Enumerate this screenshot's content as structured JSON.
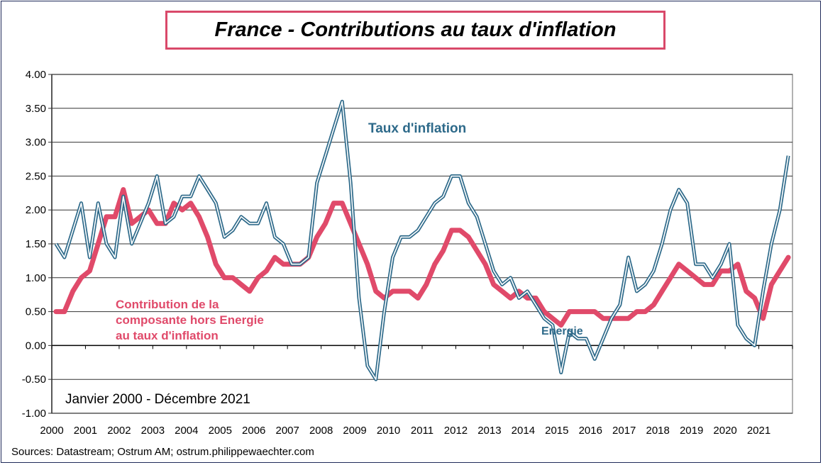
{
  "chart_data": {
    "type": "line",
    "title": "France - Contributions au taux d'inflation",
    "subtitle": "Janvier 2000 - Décembre 2021",
    "source": "Sources: Datastream; Ostrum AM; ostrum.philippewaechter.com",
    "ylim": [
      -1.0,
      4.0
    ],
    "yticks": [
      "4.00",
      "3.50",
      "3.00",
      "2.50",
      "2.00",
      "1.50",
      "1.00",
      "0.50",
      "0.00",
      "-0.50",
      "-1.00"
    ],
    "ytick_values": [
      4.0,
      3.5,
      3.0,
      2.5,
      2.0,
      1.5,
      1.0,
      0.5,
      0.0,
      -0.5,
      -1.0
    ],
    "xticks": [
      "2000",
      "2001",
      "2002",
      "2003",
      "2004",
      "2005",
      "2006",
      "2007",
      "2008",
      "2009",
      "2010",
      "2011",
      "2012",
      "2013",
      "2014",
      "2015",
      "2016",
      "2017",
      "2018",
      "2019",
      "2020",
      "2021"
    ],
    "xlim": [
      2000,
      2022
    ],
    "grid": true,
    "frequency": "quarterly",
    "x_start": 2000,
    "series": [
      {
        "name": "Taux d'inflation",
        "color": "#2e6a8a",
        "style": "double-line",
        "values": [
          1.5,
          1.3,
          1.7,
          2.1,
          1.3,
          2.1,
          1.5,
          1.3,
          2.2,
          1.5,
          1.8,
          2.1,
          2.5,
          1.8,
          1.9,
          2.2,
          2.2,
          2.5,
          2.3,
          2.1,
          1.6,
          1.7,
          1.9,
          1.8,
          1.8,
          2.1,
          1.6,
          1.5,
          1.2,
          1.2,
          1.3,
          2.4,
          2.8,
          3.2,
          3.6,
          2.4,
          0.7,
          -0.3,
          -0.5,
          0.5,
          1.3,
          1.6,
          1.6,
          1.7,
          1.9,
          2.1,
          2.2,
          2.5,
          2.5,
          2.1,
          1.9,
          1.5,
          1.1,
          0.9,
          1.0,
          0.7,
          0.8,
          0.6,
          0.4,
          0.3,
          -0.4,
          0.2,
          0.1,
          0.1,
          -0.2,
          0.1,
          0.4,
          0.6,
          1.3,
          0.8,
          0.9,
          1.1,
          1.5,
          2.0,
          2.3,
          2.1,
          1.2,
          1.2,
          1.0,
          1.2,
          1.5,
          0.3,
          0.1,
          0.0,
          0.8,
          1.5,
          2.0,
          2.8
        ]
      },
      {
        "name": "Contribution de la composante hors Energie au taux d'inflation",
        "color": "#e04a6a",
        "style": "thick",
        "values": [
          0.5,
          0.5,
          0.8,
          1.0,
          1.1,
          1.5,
          1.9,
          1.9,
          2.3,
          1.8,
          1.9,
          2.0,
          1.8,
          1.8,
          2.1,
          2.0,
          2.1,
          1.9,
          1.6,
          1.2,
          1.0,
          1.0,
          0.9,
          0.8,
          1.0,
          1.1,
          1.3,
          1.2,
          1.2,
          1.2,
          1.3,
          1.6,
          1.8,
          2.1,
          2.1,
          1.8,
          1.5,
          1.2,
          0.8,
          0.7,
          0.8,
          0.8,
          0.8,
          0.7,
          0.9,
          1.2,
          1.4,
          1.7,
          1.7,
          1.6,
          1.4,
          1.2,
          0.9,
          0.8,
          0.7,
          0.8,
          0.7,
          0.7,
          0.5,
          0.4,
          0.3,
          0.5,
          0.5,
          0.5,
          0.5,
          0.4,
          0.4,
          0.4,
          0.4,
          0.5,
          0.5,
          0.6,
          0.8,
          1.0,
          1.2,
          1.1,
          1.0,
          0.9,
          0.9,
          1.1,
          1.1,
          1.2,
          0.8,
          0.7,
          0.4,
          0.9,
          1.1,
          1.3
        ]
      }
    ],
    "annotations": {
      "inflation_label": "Taux d'inflation",
      "core_label_lines": [
        "Contribution de la",
        "composante hors Energie",
        "au taux d'inflation"
      ],
      "energy_label": "Energie"
    }
  }
}
